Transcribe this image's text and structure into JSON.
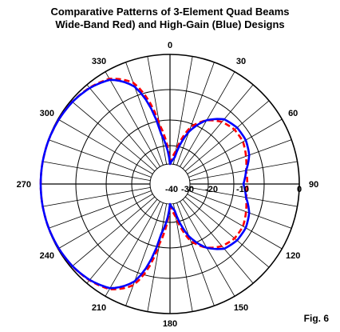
{
  "chart_data": {
    "type": "polar-line",
    "title_line1": "Comparative Patterns of 3-Element Quad Beams",
    "title_line2": "Wide-Band Red) and High-Gain (Blue) Designs",
    "figure_label": "Fig. 6",
    "angle_labels": [
      "0",
      "30",
      "60",
      "90",
      "120",
      "150",
      "180",
      "210",
      "240",
      "270",
      "300",
      "330"
    ],
    "angle_values": [
      0,
      30,
      60,
      90,
      120,
      150,
      180,
      210,
      240,
      270,
      300,
      330
    ],
    "radial_labels": [
      "0",
      "-10",
      "-20",
      "-30",
      "-40"
    ],
    "radial_values_db": [
      0,
      -10,
      -20,
      -30,
      -40
    ],
    "rlim_db": [
      -40,
      0
    ],
    "grid": true,
    "angle_step_deg": 10,
    "series": [
      {
        "name": "Wide-Band",
        "color": "#ff0000",
        "style": "dashed",
        "angles_deg": [
          0,
          10,
          20,
          30,
          40,
          50,
          60,
          70,
          80,
          90,
          100,
          110,
          120,
          130,
          140,
          150,
          160,
          170,
          180,
          190,
          200,
          210,
          220,
          230,
          240,
          250,
          260,
          270,
          280,
          290,
          300,
          310,
          320,
          330,
          340,
          350
        ],
        "values_db": [
          -40,
          -38,
          -33,
          -30,
          -28,
          -27,
          -27,
          -28,
          -29,
          -29,
          -29,
          -28,
          -27,
          -27,
          -28,
          -30,
          -33,
          -38,
          -40,
          -33,
          -18,
          -9,
          -5,
          -2.4,
          -1.1,
          -0.4,
          -0.1,
          0,
          -0.1,
          -0.4,
          -1.1,
          -2.4,
          -5,
          -9,
          -18,
          -33
        ]
      },
      {
        "name": "High-Gain",
        "color": "#0000ff",
        "style": "solid",
        "angles_deg": [
          0,
          10,
          20,
          30,
          40,
          50,
          60,
          70,
          80,
          90,
          100,
          110,
          120,
          130,
          140,
          150,
          160,
          170,
          180,
          190,
          200,
          210,
          220,
          230,
          240,
          250,
          260,
          270,
          280,
          290,
          300,
          310,
          320,
          330,
          340,
          350
        ],
        "values_db": [
          -40,
          -39,
          -34,
          -30,
          -27,
          -26,
          -26,
          -27,
          -29,
          -30,
          -29,
          -27,
          -26,
          -26,
          -27,
          -30,
          -34,
          -39,
          -40,
          -35,
          -20,
          -10,
          -5.4,
          -2.6,
          -1.2,
          -0.4,
          -0.1,
          0,
          -0.1,
          -0.4,
          -1.2,
          -2.6,
          -5.4,
          -10,
          -20,
          -35
        ]
      }
    ]
  }
}
